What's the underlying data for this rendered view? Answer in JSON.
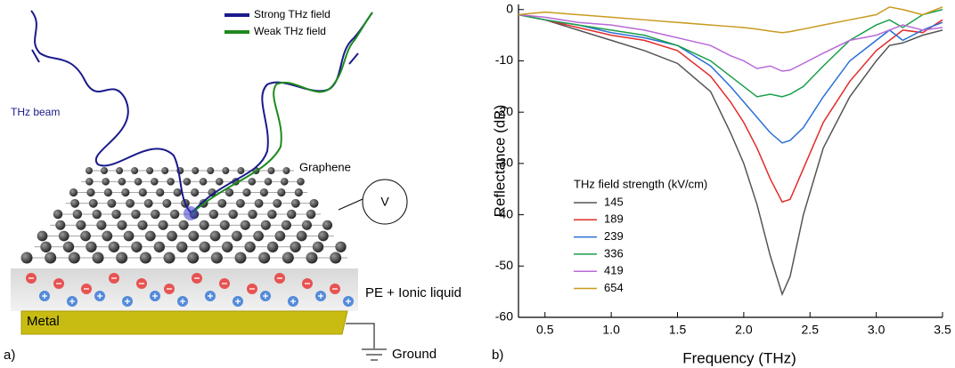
{
  "diagram": {
    "strong_label": "Strong THz field",
    "weak_label": "Weak THz field",
    "beam_label": "THz beam",
    "graphene_label": "Graphene",
    "voltage_label": "V",
    "layer_label": "PE + Ionic liquid",
    "metal_label": "Metal",
    "ground_label": "Ground",
    "panel_label": "a)"
  },
  "chart_data": {
    "type": "line",
    "panel_label": "b)",
    "xlabel": "Frequency (THz)",
    "ylabel": "Reflectance (dB)",
    "legend_title": "THz field strength (kV/cm)",
    "legend": "lower-left",
    "x": [
      0.3,
      0.5,
      0.75,
      1.0,
      1.25,
      1.5,
      1.75,
      1.9,
      2.0,
      2.1,
      2.2,
      2.29,
      2.35,
      2.45,
      2.6,
      2.8,
      3.0,
      3.1,
      3.2,
      3.35,
      3.5
    ],
    "series": [
      {
        "name": "145",
        "color": "#555555",
        "values": [
          -1,
          -2,
          -4,
          -6,
          -8,
          -10.5,
          -16,
          -24,
          -30,
          -38,
          -48,
          -55.5,
          -52,
          -40,
          -27,
          -17,
          -10,
          -7,
          -6.5,
          -5,
          -4
        ]
      },
      {
        "name": "189",
        "color": "#e32b2b",
        "values": [
          -1,
          -2,
          -3.5,
          -5,
          -6,
          -8,
          -13,
          -18,
          -22,
          -27,
          -33,
          -37.5,
          -37,
          -31,
          -22,
          -14,
          -8,
          -6,
          -4,
          -4.5,
          -2
        ]
      },
      {
        "name": "239",
        "color": "#2a6fd6",
        "values": [
          -1,
          -2,
          -3,
          -4.5,
          -5.5,
          -7,
          -11,
          -15,
          -18,
          -21,
          -24,
          -26,
          -25.5,
          -23,
          -17,
          -10,
          -6,
          -4,
          -6,
          -4,
          -2.5
        ]
      },
      {
        "name": "336",
        "color": "#1a9e4a",
        "values": [
          -1,
          -2,
          -3,
          -4,
          -5,
          -7,
          -10,
          -13,
          -15,
          -17,
          -16.5,
          -17,
          -16.5,
          -15,
          -11,
          -6,
          -3,
          -2,
          -3.5,
          -1,
          0
        ]
      },
      {
        "name": "419",
        "color": "#b86ad8",
        "values": [
          -1,
          -1.5,
          -2.5,
          -3,
          -4,
          -5.5,
          -7,
          -9,
          -10,
          -11.5,
          -11,
          -12,
          -11.8,
          -10.5,
          -8.5,
          -6,
          -5,
          -4,
          -3,
          -4,
          -3.5
        ]
      },
      {
        "name": "654",
        "color": "#c99a1e",
        "values": [
          -1,
          -0.5,
          -1,
          -1.5,
          -2,
          -2.5,
          -3,
          -3.3,
          -3.5,
          -3.8,
          -4.2,
          -4.5,
          -4.3,
          -3.8,
          -3,
          -2,
          -1,
          0.5,
          0,
          -1,
          0.5
        ]
      }
    ],
    "xlim": [
      0.3,
      3.5
    ],
    "ylim": [
      -60,
      1
    ],
    "xticks": [
      0.5,
      {
        "value": 1,
        "label": "1.0"
      },
      1.5,
      {
        "value": 2,
        "label": "2.0"
      },
      2.5,
      {
        "value": 3,
        "label": "3.0"
      },
      3.5
    ],
    "yticks": [
      0,
      -10,
      -20,
      -30,
      -40,
      -50,
      -60
    ]
  }
}
